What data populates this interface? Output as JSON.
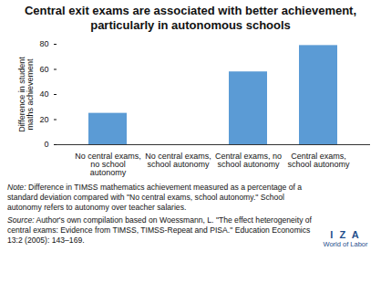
{
  "chart_data": {
    "type": "bar",
    "title": "Central exit exams are associated with better achievement, particularly in autonomous schools",
    "y_label": "Difference in student maths achievement",
    "categories": [
      "No central exams, no school autonomy",
      "No central exams, school autonomy",
      "Central exams, no school autonomy",
      "Central exams, school autonomy"
    ],
    "values": [
      25,
      0,
      58,
      79
    ],
    "color": "#5b9bd5",
    "ylim": [
      0,
      80
    ],
    "yticks": [
      0,
      20,
      40,
      60,
      80
    ],
    "grid": false,
    "note": "Note: Difference in TIMSS mathematics achievement measured as a percentage of a standard deviation compared with \"No central exams, school autonomy.\" School autonomy refers to autonomy over teacher salaries.",
    "source": "Source: Author's own compilation based on Woessmann, L. \"The effect heterogeneity of central exams: Evidence from TIMSS, TIMSS-Repeat and PISA.\" Education Economics 13:2 (2005): 143–169.",
    "logo": [
      "I Z A",
      "World of Labor"
    ]
  }
}
